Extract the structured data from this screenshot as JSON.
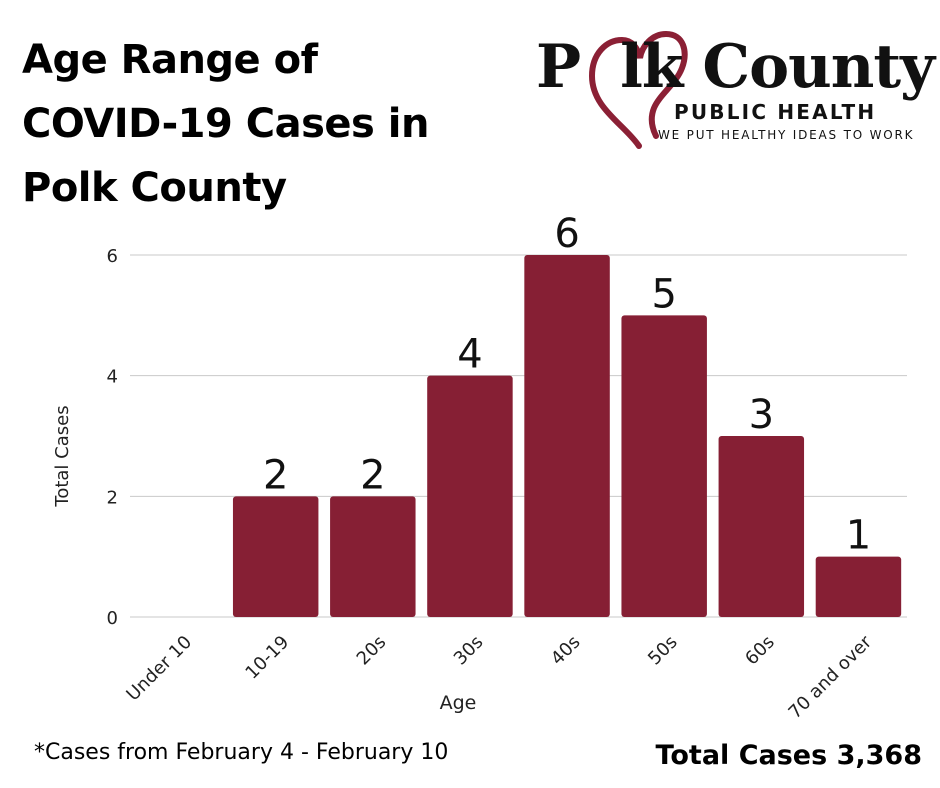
{
  "header": {
    "title_lines": [
      "Age Range of",
      "COVID-19 Cases in",
      "Polk County"
    ]
  },
  "logo": {
    "name_left": "P",
    "name_right": "lk County",
    "subtitle": "PUBLIC HEALTH",
    "tagline": "WE PUT HEALTHY IDEAS TO WORK",
    "heart_color": "#8b2035"
  },
  "chart_data": {
    "type": "bar",
    "categories": [
      "Under 10",
      "10-19",
      "20s",
      "30s",
      "40s",
      "50s",
      "60s",
      "70 and over"
    ],
    "values": [
      0,
      2,
      2,
      4,
      6,
      5,
      3,
      1
    ],
    "data_labels": [
      "",
      "2",
      "2",
      "4",
      "6",
      "5",
      "3",
      "1"
    ],
    "xlabel": "Age",
    "ylabel": "Total Cases",
    "ylim": [
      0,
      6
    ],
    "yticks": [
      0,
      2,
      4,
      6
    ],
    "grid": true,
    "bar_color": "#861f34"
  },
  "footer": {
    "note": "*Cases from February 4 - February 10",
    "total": "Total Cases 3,368"
  }
}
